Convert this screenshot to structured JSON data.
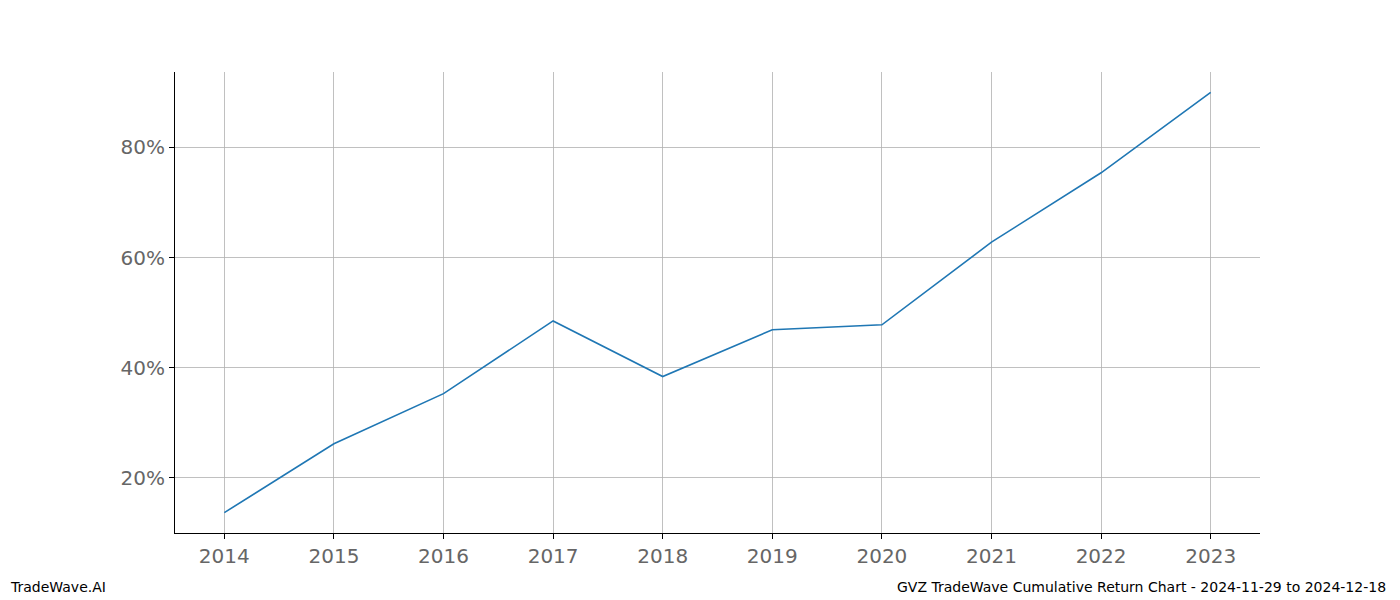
{
  "chart_data": {
    "type": "line",
    "x": [
      2014,
      2015,
      2016,
      2017,
      2018,
      2019,
      2020,
      2021,
      2022,
      2023
    ],
    "values": [
      13.7,
      26.2,
      35.3,
      48.5,
      38.4,
      46.9,
      47.8,
      62.8,
      75.4,
      90.0
    ],
    "color": "#1f77b4",
    "xlim": [
      2013.55,
      2023.45
    ],
    "xticks": [
      2014,
      2015,
      2016,
      2017,
      2018,
      2019,
      2020,
      2021,
      2022,
      2023
    ],
    "ylim": [
      10,
      93.7
    ],
    "yticks": [
      {
        "value": 20,
        "label": "20%"
      },
      {
        "value": 40,
        "label": "40%"
      },
      {
        "value": 60,
        "label": "60%"
      },
      {
        "value": 80,
        "label": "80%"
      }
    ],
    "grid": true,
    "footer_left": "TradeWave.AI",
    "footer_right": "GVZ TradeWave Cumulative Return Chart - 2024-11-29 to 2024-12-18"
  }
}
